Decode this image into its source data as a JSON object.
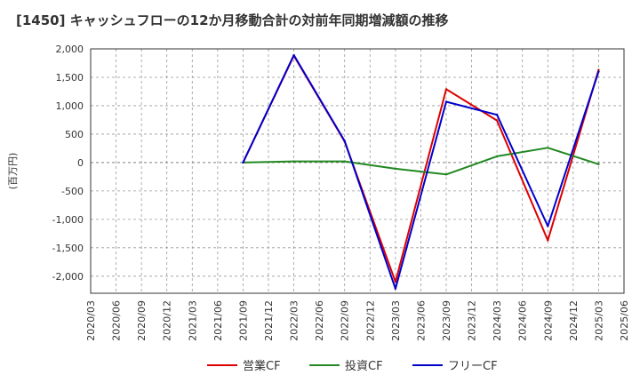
{
  "chart_data": {
    "type": "line",
    "title": "[1450]  キャッシュフローの12か月移動合計の対前年同期増減額の推移",
    "xlabel": "",
    "ylabel": "(百万円)",
    "ylim": [
      -2300,
      2000
    ],
    "yticks": [
      2000,
      1500,
      1000,
      500,
      0,
      -500,
      -1000,
      -1500,
      -2000
    ],
    "ytick_labels": [
      "2,000",
      "1,500",
      "1,000",
      "500",
      "0",
      "-500",
      "-1,000",
      "-1,500",
      "-2,000"
    ],
    "categories": [
      "2020/03",
      "2020/06",
      "2020/09",
      "2020/12",
      "2021/03",
      "2021/06",
      "2021/09",
      "2021/12",
      "2022/03",
      "2022/06",
      "2022/09",
      "2022/12",
      "2023/03",
      "2023/06",
      "2023/09",
      "2023/12",
      "2024/03",
      "2024/06",
      "2024/09",
      "2024/12",
      "2025/03",
      "2025/06"
    ],
    "series": [
      {
        "name": "営業CF",
        "color": "#dd0000",
        "values": [
          null,
          null,
          null,
          null,
          null,
          null,
          0,
          null,
          1880,
          null,
          370,
          null,
          -2100,
          null,
          1290,
          null,
          740,
          null,
          -1370,
          null,
          1630,
          null
        ]
      },
      {
        "name": "投資CF",
        "color": "#228822",
        "values": [
          null,
          null,
          null,
          null,
          null,
          null,
          0,
          null,
          20,
          null,
          20,
          null,
          -110,
          null,
          -210,
          null,
          110,
          null,
          260,
          null,
          -30,
          null
        ]
      },
      {
        "name": "フリーCF",
        "color": "#0000cc",
        "values": [
          null,
          null,
          null,
          null,
          null,
          null,
          0,
          null,
          1890,
          null,
          380,
          null,
          -2220,
          null,
          1070,
          null,
          840,
          null,
          -1120,
          null,
          1600,
          null
        ]
      }
    ],
    "grid": true,
    "legend": "bottom"
  }
}
